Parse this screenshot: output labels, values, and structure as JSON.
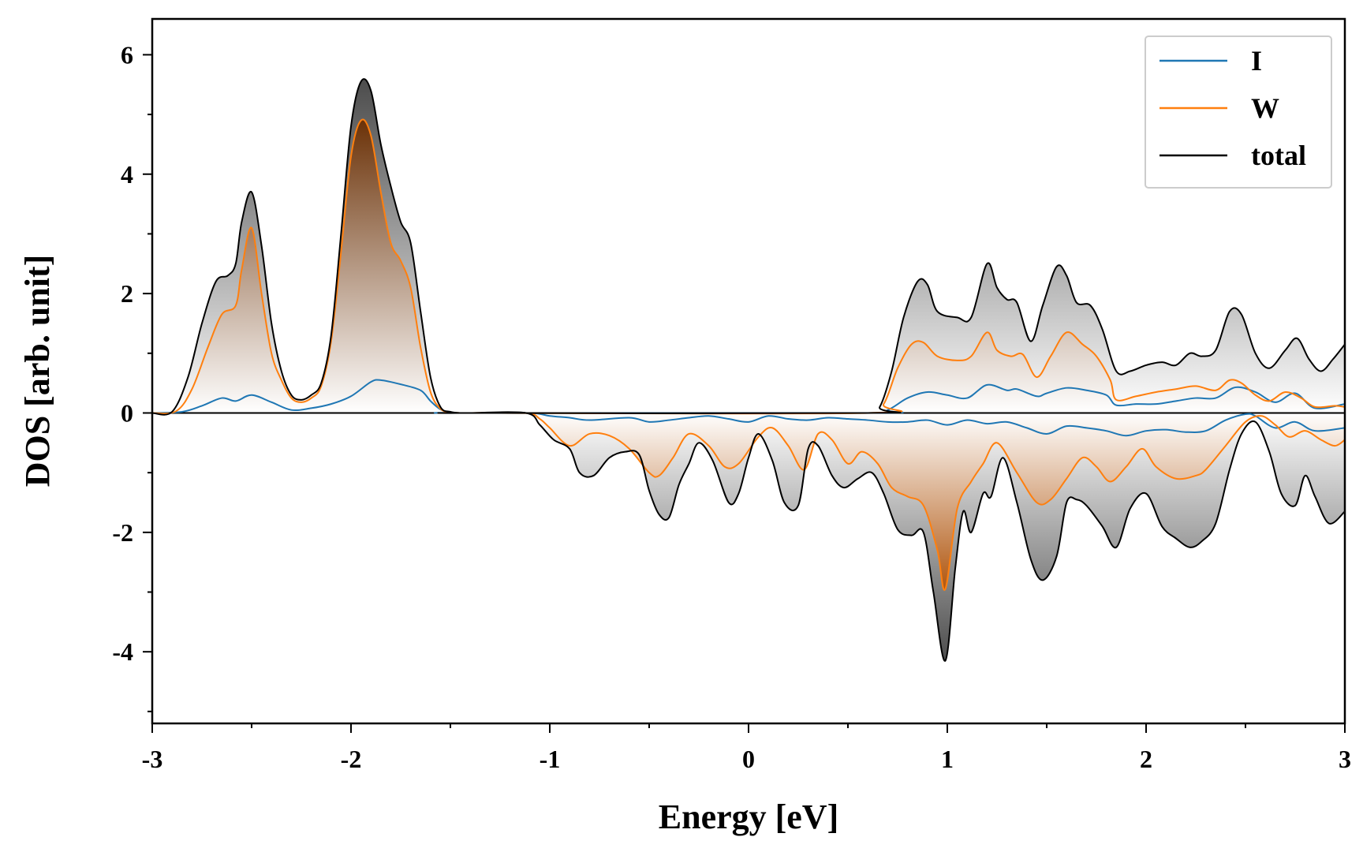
{
  "chart_data": {
    "type": "area",
    "title": "",
    "xlabel": "Energy [eV]",
    "ylabel": "DOS [arb. unit]",
    "xlim": [
      -3,
      3
    ],
    "ylim": [
      -5.2,
      6.6
    ],
    "grid": false,
    "legend_position": "top-right",
    "x_ticks": [
      -3,
      -2,
      -1,
      0,
      1,
      2,
      3
    ],
    "x_tick_labels": [
      "-3",
      "-2",
      "-1",
      "0",
      "1",
      "2",
      "3"
    ],
    "y_ticks": [
      -4,
      -2,
      0,
      2,
      4,
      6
    ],
    "y_tick_labels": [
      "-4",
      "-2",
      "0",
      "2",
      "4",
      "6"
    ],
    "colors": {
      "I": "#1f77b4",
      "W": "#ff7f0e",
      "total": "#000000",
      "total_fill": "#555555",
      "w_fill": "#8b4513"
    },
    "series": [
      {
        "name": "I",
        "color": "#1f77b4",
        "up": {
          "x": [
            -3.0,
            -2.85,
            -2.75,
            -2.65,
            -2.58,
            -2.5,
            -2.4,
            -2.3,
            -2.2,
            -2.1,
            -2.0,
            -1.9,
            -1.85,
            -1.75,
            -1.65,
            -1.6,
            -1.55,
            -1.5,
            -1.4,
            0.6,
            0.7,
            0.8,
            0.9,
            1.0,
            1.1,
            1.2,
            1.3,
            1.35,
            1.45,
            1.5,
            1.6,
            1.7,
            1.8,
            1.85,
            1.95,
            2.05,
            2.15,
            2.25,
            2.35,
            2.45,
            2.55,
            2.65,
            2.75,
            2.85,
            3.0
          ],
          "y": [
            0.0,
            0.02,
            0.12,
            0.25,
            0.2,
            0.3,
            0.18,
            0.05,
            0.08,
            0.15,
            0.28,
            0.52,
            0.55,
            0.48,
            0.38,
            0.2,
            0.06,
            0.01,
            0.0,
            0.0,
            0.05,
            0.25,
            0.35,
            0.3,
            0.25,
            0.47,
            0.38,
            0.4,
            0.28,
            0.33,
            0.42,
            0.38,
            0.3,
            0.13,
            0.15,
            0.15,
            0.2,
            0.25,
            0.25,
            0.43,
            0.35,
            0.18,
            0.33,
            0.08,
            0.15
          ]
        },
        "down": {
          "x": [
            -1.4,
            -1.1,
            -1.0,
            -0.9,
            -0.8,
            -0.6,
            -0.5,
            -0.4,
            -0.3,
            -0.2,
            -0.1,
            0.0,
            0.1,
            0.2,
            0.3,
            0.4,
            0.5,
            0.6,
            0.7,
            0.8,
            0.9,
            1.0,
            1.1,
            1.2,
            1.3,
            1.4,
            1.5,
            1.6,
            1.7,
            1.8,
            1.9,
            2.0,
            2.1,
            2.2,
            2.3,
            2.4,
            2.5,
            2.55,
            2.65,
            2.75,
            2.85,
            3.0
          ],
          "y": [
            0.0,
            0.0,
            -0.05,
            -0.08,
            -0.12,
            -0.08,
            -0.15,
            -0.12,
            -0.08,
            -0.05,
            -0.1,
            -0.15,
            -0.05,
            -0.1,
            -0.12,
            -0.08,
            -0.1,
            -0.12,
            -0.15,
            -0.15,
            -0.12,
            -0.2,
            -0.12,
            -0.18,
            -0.15,
            -0.25,
            -0.35,
            -0.22,
            -0.25,
            -0.3,
            -0.38,
            -0.3,
            -0.28,
            -0.32,
            -0.3,
            -0.12,
            -0.02,
            -0.05,
            -0.25,
            -0.15,
            -0.3,
            -0.25
          ]
        }
      },
      {
        "name": "W",
        "color": "#ff7f0e",
        "up": {
          "x": [
            -3.0,
            -2.88,
            -2.8,
            -2.72,
            -2.65,
            -2.58,
            -2.55,
            -2.5,
            -2.45,
            -2.4,
            -2.35,
            -2.3,
            -2.25,
            -2.2,
            -2.15,
            -2.1,
            -2.05,
            -2.0,
            -1.95,
            -1.9,
            -1.85,
            -1.8,
            -1.75,
            -1.7,
            -1.65,
            -1.6,
            -1.55,
            -1.5,
            -1.45,
            -1.4,
            0.6,
            0.68,
            0.75,
            0.82,
            0.88,
            0.95,
            1.05,
            1.12,
            1.2,
            1.25,
            1.32,
            1.38,
            1.45,
            1.52,
            1.6,
            1.68,
            1.75,
            1.82,
            1.85,
            1.95,
            2.05,
            2.15,
            2.25,
            2.35,
            2.42,
            2.48,
            2.55,
            2.62,
            2.7,
            2.78,
            2.85,
            2.95,
            3.0
          ],
          "y": [
            0.0,
            0.03,
            0.4,
            1.1,
            1.65,
            1.8,
            2.4,
            3.1,
            2.0,
            1.0,
            0.55,
            0.25,
            0.18,
            0.25,
            0.45,
            1.2,
            2.7,
            4.3,
            4.9,
            4.65,
            3.7,
            2.85,
            2.55,
            2.1,
            1.1,
            0.35,
            0.07,
            0.01,
            0.0,
            0.0,
            0.0,
            0.15,
            0.75,
            1.15,
            1.18,
            0.95,
            0.88,
            0.95,
            1.35,
            1.05,
            0.95,
            0.98,
            0.6,
            0.95,
            1.35,
            1.15,
            0.95,
            0.55,
            0.22,
            0.28,
            0.35,
            0.4,
            0.45,
            0.38,
            0.55,
            0.5,
            0.3,
            0.2,
            0.35,
            0.25,
            0.1,
            0.12,
            0.1
          ]
        },
        "down": {
          "x": [
            -1.4,
            -1.12,
            -1.05,
            -1.0,
            -0.9,
            -0.8,
            -0.7,
            -0.6,
            -0.5,
            -0.45,
            -0.38,
            -0.3,
            -0.2,
            -0.12,
            -0.05,
            0.05,
            0.12,
            0.2,
            0.28,
            0.35,
            0.42,
            0.5,
            0.57,
            0.65,
            0.72,
            0.8,
            0.88,
            0.95,
            0.99,
            1.05,
            1.12,
            1.18,
            1.25,
            1.35,
            1.45,
            1.52,
            1.6,
            1.68,
            1.75,
            1.82,
            1.9,
            1.98,
            2.05,
            2.15,
            2.25,
            2.3,
            2.4,
            2.5,
            2.58,
            2.65,
            2.72,
            2.8,
            2.88,
            2.95,
            3.0
          ],
          "y": [
            0.0,
            0.0,
            -0.1,
            -0.25,
            -0.55,
            -0.35,
            -0.38,
            -0.6,
            -1.0,
            -1.05,
            -0.75,
            -0.35,
            -0.55,
            -0.9,
            -0.85,
            -0.4,
            -0.25,
            -0.55,
            -0.95,
            -0.35,
            -0.45,
            -0.85,
            -0.65,
            -0.85,
            -1.25,
            -1.4,
            -1.55,
            -2.3,
            -2.95,
            -1.6,
            -1.15,
            -0.85,
            -0.5,
            -1.0,
            -1.5,
            -1.45,
            -1.1,
            -0.75,
            -0.9,
            -1.15,
            -0.9,
            -0.6,
            -0.9,
            -1.1,
            -1.05,
            -0.95,
            -0.55,
            -0.15,
            -0.05,
            -0.2,
            -0.4,
            -0.3,
            -0.45,
            -0.55,
            -0.45
          ]
        }
      },
      {
        "name": "total",
        "color": "#000000",
        "up": {
          "x": [
            -3.0,
            -2.9,
            -2.82,
            -2.75,
            -2.68,
            -2.62,
            -2.58,
            -2.55,
            -2.5,
            -2.45,
            -2.4,
            -2.35,
            -2.3,
            -2.25,
            -2.2,
            -2.15,
            -2.1,
            -2.05,
            -2.0,
            -1.95,
            -1.9,
            -1.85,
            -1.8,
            -1.75,
            -1.7,
            -1.65,
            -1.6,
            -1.55,
            -1.5,
            -1.45,
            -1.4,
            0.6,
            0.66,
            0.72,
            0.78,
            0.85,
            0.9,
            0.95,
            1.05,
            1.12,
            1.2,
            1.25,
            1.3,
            1.35,
            1.42,
            1.48,
            1.55,
            1.6,
            1.65,
            1.72,
            1.78,
            1.85,
            1.92,
            2.0,
            2.08,
            2.15,
            2.22,
            2.28,
            2.35,
            2.42,
            2.48,
            2.55,
            2.62,
            2.7,
            2.76,
            2.82,
            2.88,
            2.94,
            3.0
          ],
          "y": [
            0.0,
            0.02,
            0.6,
            1.5,
            2.2,
            2.3,
            2.5,
            3.2,
            3.7,
            2.8,
            1.5,
            0.7,
            0.3,
            0.22,
            0.3,
            0.5,
            1.3,
            3.0,
            4.8,
            5.55,
            5.4,
            4.5,
            3.8,
            3.2,
            2.85,
            1.7,
            0.6,
            0.1,
            0.02,
            0.0,
            0.0,
            0.0,
            0.1,
            0.7,
            1.6,
            2.2,
            2.15,
            1.7,
            1.6,
            1.6,
            2.5,
            2.1,
            1.9,
            1.85,
            1.2,
            1.8,
            2.45,
            2.3,
            1.85,
            1.8,
            1.4,
            0.7,
            0.7,
            0.8,
            0.85,
            0.8,
            1.0,
            0.95,
            1.05,
            1.7,
            1.65,
            1.0,
            0.75,
            1.05,
            1.25,
            0.9,
            0.7,
            0.9,
            1.15
          ]
        },
        "down": {
          "x": [
            -1.4,
            -1.12,
            -1.05,
            -0.98,
            -0.9,
            -0.85,
            -0.78,
            -0.7,
            -0.62,
            -0.55,
            -0.5,
            -0.45,
            -0.4,
            -0.35,
            -0.3,
            -0.25,
            -0.18,
            -0.1,
            -0.05,
            0.0,
            0.05,
            0.12,
            0.18,
            0.25,
            0.3,
            0.35,
            0.42,
            0.48,
            0.55,
            0.62,
            0.68,
            0.75,
            0.82,
            0.88,
            0.93,
            0.99,
            1.04,
            1.08,
            1.12,
            1.18,
            1.22,
            1.28,
            1.35,
            1.42,
            1.48,
            1.55,
            1.6,
            1.65,
            1.7,
            1.78,
            1.85,
            1.92,
            2.0,
            2.08,
            2.15,
            2.22,
            2.28,
            2.35,
            2.42,
            2.48,
            2.55,
            2.62,
            2.68,
            2.75,
            2.8,
            2.85,
            2.92,
            3.0
          ],
          "y": [
            0.0,
            0.0,
            -0.2,
            -0.45,
            -0.6,
            -1.0,
            -1.05,
            -0.75,
            -0.65,
            -0.7,
            -1.3,
            -1.7,
            -1.75,
            -1.2,
            -0.85,
            -0.5,
            -0.8,
            -1.5,
            -1.35,
            -0.75,
            -0.35,
            -0.8,
            -1.5,
            -1.55,
            -0.6,
            -0.55,
            -1.05,
            -1.25,
            -1.1,
            -1.0,
            -1.35,
            -1.95,
            -2.05,
            -2.0,
            -3.0,
            -4.15,
            -2.6,
            -1.65,
            -2.0,
            -1.35,
            -1.4,
            -0.75,
            -1.5,
            -2.45,
            -2.8,
            -2.4,
            -1.5,
            -1.45,
            -1.55,
            -1.9,
            -2.25,
            -1.6,
            -1.35,
            -1.9,
            -2.1,
            -2.25,
            -2.15,
            -1.85,
            -0.95,
            -0.35,
            -0.15,
            -0.65,
            -1.35,
            -1.55,
            -1.05,
            -1.4,
            -1.85,
            -1.65
          ]
        }
      }
    ]
  }
}
